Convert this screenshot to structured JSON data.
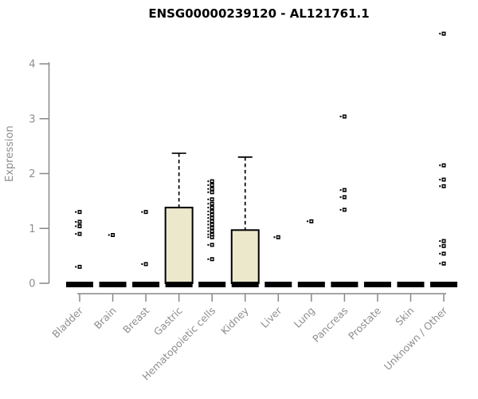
{
  "chart_data": {
    "type": "boxplot",
    "title": "ENSG00000239120 - AL121761.1",
    "ylabel": "Expression",
    "xlabel": "",
    "ylim": [
      0,
      4.6
    ],
    "yticks": [
      0,
      1,
      2,
      3,
      4
    ],
    "grid": false,
    "legend": null,
    "categories": [
      "Bladder",
      "Brain",
      "Breast",
      "Gastric",
      "Hematopoietic cells",
      "Kidney",
      "Liver",
      "Lung",
      "Pancreas",
      "Prostate",
      "Skin",
      "Unknown / Other"
    ],
    "series": [
      {
        "category": "Bladder",
        "q1": 0,
        "median": 0,
        "q3": 0,
        "whisker_low": 0,
        "whisker_high": 0,
        "outliers": [
          1.3,
          1.12,
          1.04,
          0.9,
          0.3
        ]
      },
      {
        "category": "Brain",
        "q1": 0,
        "median": 0,
        "q3": 0,
        "whisker_low": 0,
        "whisker_high": 0,
        "outliers": [
          0.88
        ]
      },
      {
        "category": "Breast",
        "q1": 0,
        "median": 0,
        "q3": 0,
        "whisker_low": 0,
        "whisker_high": 0,
        "outliers": [
          1.3,
          0.35
        ]
      },
      {
        "category": "Gastric",
        "q1": 0,
        "median": 0,
        "q3": 1.38,
        "whisker_low": 0,
        "whisker_high": 2.37,
        "outliers": []
      },
      {
        "category": "Hematopoietic cells",
        "q1": 0,
        "median": 0,
        "q3": 0,
        "whisker_low": 0,
        "whisker_high": 0,
        "outliers": [
          1.86,
          1.79,
          1.72,
          1.66,
          1.53,
          1.45,
          1.38,
          1.31,
          1.25,
          1.19,
          1.13,
          1.07,
          1.01,
          0.95,
          0.89,
          0.84,
          0.7,
          0.44
        ]
      },
      {
        "category": "Kidney",
        "q1": 0,
        "median": 0,
        "q3": 0.97,
        "whisker_low": 0,
        "whisker_high": 2.3,
        "outliers": []
      },
      {
        "category": "Liver",
        "q1": 0,
        "median": 0,
        "q3": 0,
        "whisker_low": 0,
        "whisker_high": 0,
        "outliers": [
          0.84
        ]
      },
      {
        "category": "Lung",
        "q1": 0,
        "median": 0,
        "q3": 0,
        "whisker_low": 0,
        "whisker_high": 0,
        "outliers": [
          1.13
        ]
      },
      {
        "category": "Pancreas",
        "q1": 0,
        "median": 0,
        "q3": 0,
        "whisker_low": 0,
        "whisker_high": 0,
        "outliers": [
          3.04,
          1.7,
          1.57,
          1.34
        ]
      },
      {
        "category": "Prostate",
        "q1": 0,
        "median": 0,
        "q3": 0,
        "whisker_low": 0,
        "whisker_high": 0,
        "outliers": []
      },
      {
        "category": "Skin",
        "q1": 0,
        "median": 0,
        "q3": 0,
        "whisker_low": 0,
        "whisker_high": 0,
        "outliers": []
      },
      {
        "category": "Unknown / Other",
        "q1": 0,
        "median": 0,
        "q3": 0,
        "whisker_low": 0,
        "whisker_high": 0,
        "outliers": [
          4.55,
          2.15,
          1.89,
          1.77,
          0.77,
          0.68,
          0.54,
          0.36
        ]
      }
    ],
    "colors": {
      "box_fill": "#ece8cb",
      "box_stroke": "#000000",
      "median": "#000000",
      "outlier": "#000000",
      "axis": "#888888",
      "tick_label": "#8e8e8e",
      "title": "#000000",
      "background": "#ffffff"
    }
  }
}
